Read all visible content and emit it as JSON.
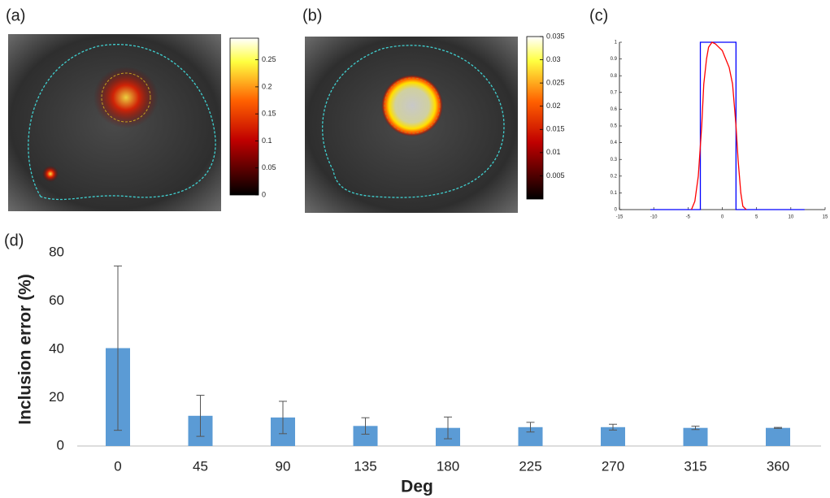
{
  "chart_data": [
    {
      "type": "image",
      "label": "(a)",
      "colorbar_lim": [
        0,
        0.29
      ],
      "colorbar_ticks": [
        0,
        0.05,
        0.1,
        0.15,
        0.2,
        0.25
      ]
    },
    {
      "type": "image",
      "label": "(b)",
      "colorbar_lim": [
        0,
        0.035
      ],
      "colorbar_ticks": [
        0.005,
        0.01,
        0.015,
        0.02,
        0.025,
        0.03,
        0.035
      ]
    },
    {
      "type": "line",
      "label": "(c)",
      "xlim": [
        -15,
        15
      ],
      "ylim": [
        0,
        1
      ],
      "xticks": [
        -15,
        -10,
        -5,
        0,
        5,
        10,
        15
      ],
      "yticks": [
        0,
        0.1,
        0.2,
        0.3,
        0.4,
        0.5,
        0.6,
        0.7,
        0.8,
        0.9,
        1
      ],
      "series": [
        {
          "color": "#0000ff",
          "x": [
            -10.5,
            -3.2,
            -3.2,
            2,
            2,
            12
          ],
          "values": [
            0,
            0,
            1,
            1,
            0,
            0
          ]
        },
        {
          "color": "#ff0000",
          "x": [
            -4.5,
            -4,
            -3.5,
            -3,
            -2.7,
            -2.3,
            -2,
            -1.5,
            -1,
            -0.5,
            0,
            0.5,
            1,
            1.5,
            2,
            2.3,
            2.7,
            3,
            3.5
          ],
          "values": [
            0,
            0.05,
            0.2,
            0.5,
            0.75,
            0.9,
            0.97,
            1,
            0.99,
            0.97,
            0.95,
            0.9,
            0.85,
            0.75,
            0.5,
            0.3,
            0.1,
            0.02,
            0
          ]
        }
      ]
    },
    {
      "type": "bar",
      "label": "(d)",
      "xlabel": "Deg",
      "ylabel": "Inclusion error (%)",
      "color": "#5b9bd5",
      "categories": [
        "0",
        "45",
        "90",
        "135",
        "180",
        "225",
        "270",
        "315",
        "360"
      ],
      "values": [
        40.5,
        12.5,
        11.8,
        8.3,
        7.5,
        7.8,
        7.8,
        7.5,
        7.5
      ],
      "errors": [
        34,
        8.5,
        6.7,
        3.4,
        4.5,
        2,
        1.2,
        0.7,
        0.2
      ],
      "ylim": [
        0,
        80
      ],
      "yticks": [
        0,
        20,
        40,
        60,
        80
      ]
    }
  ]
}
